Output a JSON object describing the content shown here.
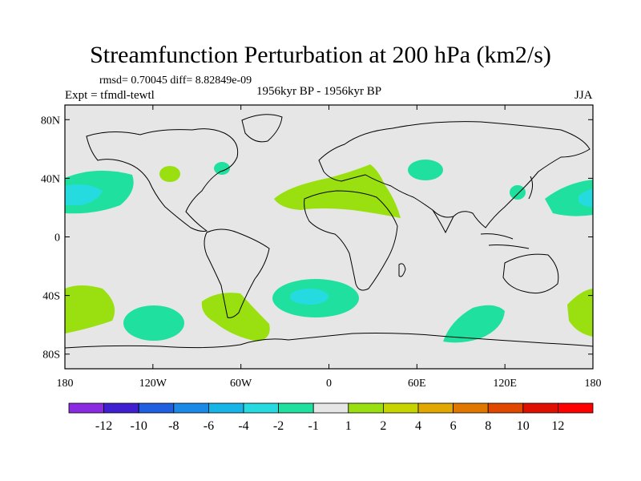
{
  "title": "Streamfunction Perturbation at 200 hPa (km2/s)",
  "stats": "rmsd= 0.70045  diff= 8.82849e-09",
  "experiment": "Expt = tfmdl-tewtl",
  "period": "1956kyr BP - 1956kyr BP",
  "season": "JJA",
  "map": {
    "projection": "cylindrical-equidistant",
    "lat_ticks": [
      "80N",
      "40N",
      "0",
      "40S",
      "80S"
    ],
    "lon_ticks": [
      "180",
      "120W",
      "60W",
      "0",
      "60E",
      "120E",
      "180"
    ],
    "background_color": "#e6e6e6",
    "coastline_color": "#000000"
  },
  "colorbar": {
    "labels": [
      "-12",
      "-10",
      "-8",
      "-6",
      "-4",
      "-2",
      "-1",
      "1",
      "2",
      "4",
      "6",
      "8",
      "10",
      "12"
    ],
    "colors": [
      "#8a2be2",
      "#3f1fd0",
      "#1f5fe0",
      "#1a8ae6",
      "#17b4e8",
      "#25dbe0",
      "#20e0a0",
      "#e6e6e6",
      "#9ae010",
      "#c8d400",
      "#e0a800",
      "#e07800",
      "#e04800",
      "#e01000",
      "#ff0000"
    ]
  },
  "anomalies": [
    {
      "name": "north-pacific-west-positive",
      "color": "#20e0a0"
    },
    {
      "name": "north-pacific-west-core",
      "color": "#25dbe0"
    },
    {
      "name": "north-pacific-east-positive",
      "color": "#20e0a0"
    },
    {
      "name": "north-pacific-east-core",
      "color": "#25dbe0"
    },
    {
      "name": "north-atlantic-africa-positive",
      "color": "#9ae010"
    },
    {
      "name": "south-atlantic-negative",
      "color": "#20e0a0"
    },
    {
      "name": "south-atlantic-core",
      "color": "#25dbe0"
    },
    {
      "name": "south-indian-negative",
      "color": "#20e0a0"
    }
  ]
}
